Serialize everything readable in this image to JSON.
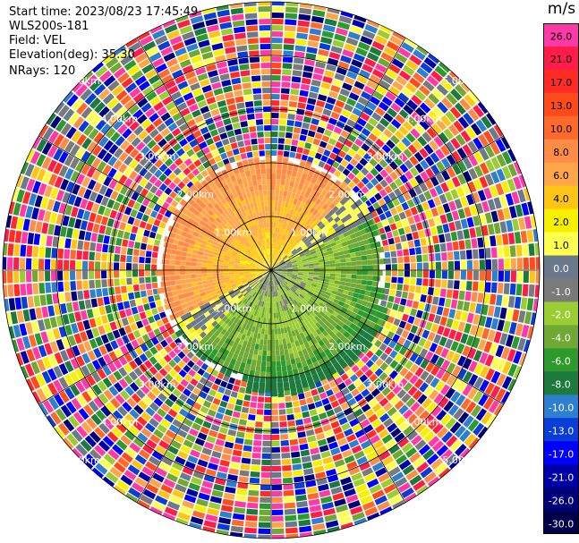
{
  "header": {
    "start_time": "Start time: 2023/08/23 17:45:49",
    "instrument": "WLS200s-181",
    "field": "Field: VEL",
    "elevation": "Elevation(deg): 35.30",
    "nrays": "NRays: 120"
  },
  "colorbar": {
    "unit": "m/s",
    "labels": [
      "26.0",
      "21.0",
      "17.0",
      "13.0",
      "10.0",
      "8.0",
      "6.0",
      "4.0",
      "2.0",
      "1.0",
      "0.0",
      "-1.0",
      "-2.0",
      "-4.0",
      "-6.0",
      "-8.0",
      "-10.0",
      "-13.0",
      "-17.0",
      "-21.0",
      "-26.0",
      "-30.0"
    ],
    "colors": [
      "#ff3aa6",
      "#ff1c48",
      "#ff2b24",
      "#ff4a1c",
      "#ff6a2a",
      "#ff8c46",
      "#ffa64a",
      "#ffc414",
      "#f7f000",
      "#ffff4d",
      "#6a7a8c",
      "#7a7a7a",
      "#9acd32",
      "#6fa832",
      "#2e9a2e",
      "#1c7a3c",
      "#2f7fd1",
      "#0a3cd6",
      "#0000ff",
      "#0000a8",
      "#000078",
      "#00004a"
    ]
  },
  "chart_data": {
    "type": "heatmap",
    "title": "",
    "field": "VEL",
    "unit": "m/s",
    "n_rays": 120,
    "elevation_deg": 35.3,
    "range_ring_labels": [
      "1.00km",
      "2.00km",
      "3.00km",
      "4.00km",
      "5.00km"
    ],
    "color_scale": [
      26.0,
      21.0,
      17.0,
      13.0,
      10.0,
      8.0,
      6.0,
      4.0,
      2.0,
      1.0,
      0.0,
      -1.0,
      -2.0,
      -4.0,
      -6.0,
      -8.0,
      -10.0,
      -13.0,
      -17.0,
      -21.0,
      -26.0,
      -30.0
    ],
    "valid_echo_region": "within ~2 km: positive velocities (yellow/orange) to the north and west, negative velocities (green/grey) to the south and east; beyond ~2 km noisy random velocities"
  }
}
